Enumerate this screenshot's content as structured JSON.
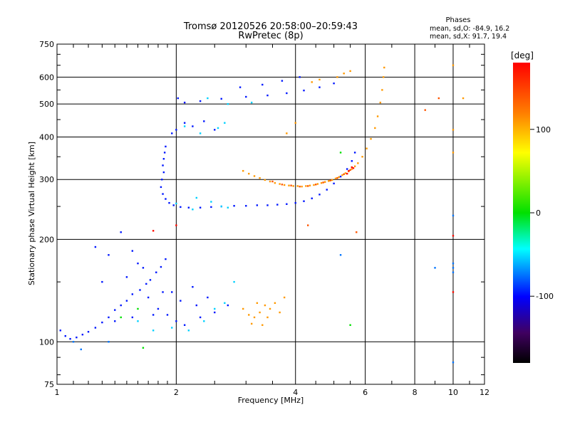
{
  "chart_data": {
    "type": "scatter",
    "title": "Tromsø 20120526 20:58:00–20:59:43",
    "subtitle": "RwPretec (8p)",
    "xlabel": "Frequency [MHz]",
    "ylabel": "Stationary phase Virtual Height [km]",
    "x_scale": "log",
    "y_scale": "log",
    "xlim": [
      1,
      12
    ],
    "ylim": [
      75,
      750
    ],
    "x_ticks": [
      1,
      2,
      4,
      6,
      8,
      10,
      12
    ],
    "y_ticks": [
      75,
      100,
      200,
      300,
      400,
      500,
      600,
      750
    ],
    "grid": true,
    "phases": {
      "heading": "Phases",
      "line1": "mean, sd,O:  -84.9, 16.2",
      "line2": "mean, sd,X:  91.7, 19.4"
    },
    "colorbar": {
      "label": "[deg]",
      "min": -180,
      "max": 180,
      "ticks": [
        100,
        0,
        -100
      ]
    },
    "series": [
      {
        "phase_deg": -95,
        "points": [
          [
            1.02,
            108
          ],
          [
            1.05,
            104
          ],
          [
            1.08,
            102
          ],
          [
            1.12,
            103
          ],
          [
            1.16,
            105
          ],
          [
            1.2,
            107
          ],
          [
            1.25,
            110
          ],
          [
            1.3,
            114
          ],
          [
            1.35,
            118
          ],
          [
            1.4,
            124
          ],
          [
            1.45,
            128
          ],
          [
            1.5,
            132
          ],
          [
            1.55,
            138
          ],
          [
            1.62,
            142
          ],
          [
            1.68,
            148
          ],
          [
            1.72,
            152
          ],
          [
            1.78,
            160
          ],
          [
            1.83,
            166
          ],
          [
            1.88,
            175
          ],
          [
            1.85,
            330
          ],
          [
            1.86,
            345
          ],
          [
            1.87,
            360
          ],
          [
            1.88,
            375
          ],
          [
            1.86,
            315
          ],
          [
            1.84,
            300
          ],
          [
            1.83,
            285
          ],
          [
            1.85,
            272
          ],
          [
            1.88,
            263
          ],
          [
            1.92,
            256
          ],
          [
            1.97,
            252
          ],
          [
            2.05,
            249
          ],
          [
            2.15,
            248
          ],
          [
            2.3,
            248
          ],
          [
            2.45,
            249
          ],
          [
            2.6,
            250
          ],
          [
            2.8,
            251
          ],
          [
            3.0,
            251
          ],
          [
            3.2,
            252
          ],
          [
            3.4,
            252
          ],
          [
            3.6,
            253
          ],
          [
            3.8,
            254
          ],
          [
            4.0,
            256
          ],
          [
            4.2,
            259
          ],
          [
            4.4,
            264
          ],
          [
            4.6,
            271
          ],
          [
            4.8,
            280
          ],
          [
            5.0,
            292
          ],
          [
            5.2,
            306
          ],
          [
            5.4,
            322
          ],
          [
            5.55,
            340
          ],
          [
            5.65,
            360
          ],
          [
            1.95,
            410
          ],
          [
            2.0,
            420
          ],
          [
            2.1,
            440
          ],
          [
            2.2,
            430
          ],
          [
            2.35,
            445
          ],
          [
            2.5,
            420
          ],
          [
            2.02,
            520
          ],
          [
            2.1,
            505
          ],
          [
            2.3,
            510
          ],
          [
            2.6,
            518
          ],
          [
            3.0,
            525
          ],
          [
            3.4,
            530
          ],
          [
            3.8,
            538
          ],
          [
            4.2,
            548
          ],
          [
            4.6,
            560
          ],
          [
            5.0,
            575
          ],
          [
            2.9,
            560
          ],
          [
            3.3,
            570
          ],
          [
            3.7,
            585
          ],
          [
            4.1,
            600
          ],
          [
            1.45,
            210
          ],
          [
            1.55,
            185
          ],
          [
            1.6,
            170
          ],
          [
            1.65,
            165
          ],
          [
            1.35,
            180
          ],
          [
            1.25,
            190
          ],
          [
            1.3,
            150
          ],
          [
            1.5,
            155
          ],
          [
            1.7,
            135
          ],
          [
            1.8,
            125
          ],
          [
            1.9,
            120
          ],
          [
            2.0,
            115
          ],
          [
            2.1,
            112
          ],
          [
            2.3,
            118
          ],
          [
            2.5,
            122
          ],
          [
            2.7,
            128
          ],
          [
            2.4,
            135
          ],
          [
            2.2,
            145
          ],
          [
            1.95,
            140
          ],
          [
            1.75,
            120
          ],
          [
            1.55,
            118
          ],
          [
            1.4,
            115
          ],
          [
            1.85,
            140
          ],
          [
            2.05,
            132
          ],
          [
            2.25,
            128
          ]
        ]
      },
      {
        "phase_deg": -55,
        "points": [
          [
            2.6,
            250
          ],
          [
            2.7,
            248
          ],
          [
            2.2,
            245
          ],
          [
            2.0,
            255
          ],
          [
            2.45,
            258
          ],
          [
            2.25,
            265
          ],
          [
            2.1,
            430
          ],
          [
            2.3,
            410
          ],
          [
            2.55,
            425
          ],
          [
            2.65,
            440
          ],
          [
            2.8,
            150
          ],
          [
            2.65,
            130
          ],
          [
            2.5,
            125
          ],
          [
            2.35,
            115
          ],
          [
            2.15,
            108
          ],
          [
            1.95,
            110
          ],
          [
            1.75,
            108
          ],
          [
            1.6,
            115
          ],
          [
            2.4,
            520
          ],
          [
            2.7,
            500
          ],
          [
            3.1,
            505
          ]
        ]
      },
      {
        "phase_deg": 110,
        "points": [
          [
            2.95,
            318
          ],
          [
            3.05,
            312
          ],
          [
            3.15,
            307
          ],
          [
            3.25,
            303
          ],
          [
            3.35,
            299
          ],
          [
            3.45,
            296
          ],
          [
            3.55,
            293
          ],
          [
            3.65,
            291
          ],
          [
            3.75,
            289
          ],
          [
            3.85,
            288
          ],
          [
            3.95,
            287
          ],
          [
            4.05,
            287
          ],
          [
            4.15,
            286
          ],
          [
            4.25,
            287
          ],
          [
            4.35,
            288
          ],
          [
            4.45,
            289
          ],
          [
            4.55,
            291
          ],
          [
            4.65,
            293
          ],
          [
            4.75,
            295
          ],
          [
            4.85,
            297
          ],
          [
            4.95,
            299
          ],
          [
            5.05,
            302
          ],
          [
            5.15,
            305
          ],
          [
            5.25,
            309
          ],
          [
            5.35,
            313
          ],
          [
            5.45,
            317
          ],
          [
            5.55,
            322
          ],
          [
            5.65,
            328
          ],
          [
            5.75,
            335
          ],
          [
            5.9,
            350
          ],
          [
            6.05,
            370
          ],
          [
            6.2,
            395
          ],
          [
            6.35,
            425
          ],
          [
            6.45,
            460
          ],
          [
            6.55,
            505
          ],
          [
            6.62,
            550
          ],
          [
            6.67,
            600
          ],
          [
            6.7,
            640
          ],
          [
            5.1,
            600
          ],
          [
            5.3,
            615
          ],
          [
            5.5,
            625
          ],
          [
            4.6,
            590
          ],
          [
            4.4,
            580
          ],
          [
            4.0,
            440
          ],
          [
            3.8,
            410
          ],
          [
            2.95,
            125
          ],
          [
            3.05,
            120
          ],
          [
            3.15,
            118
          ],
          [
            3.25,
            122
          ],
          [
            3.35,
            128
          ],
          [
            3.45,
            125
          ],
          [
            3.55,
            130
          ],
          [
            3.65,
            122
          ],
          [
            3.75,
            135
          ],
          [
            3.1,
            113
          ],
          [
            3.3,
            112
          ],
          [
            3.2,
            130
          ],
          [
            3.4,
            118
          ],
          [
            10.0,
            650
          ],
          [
            10.0,
            420
          ],
          [
            10.0,
            360
          ],
          [
            10.6,
            520
          ]
        ]
      },
      {
        "phase_deg": 140,
        "points": [
          [
            3.5,
            296
          ],
          [
            3.7,
            290
          ],
          [
            3.9,
            288
          ],
          [
            4.1,
            286
          ],
          [
            4.3,
            287
          ],
          [
            4.5,
            290
          ],
          [
            4.7,
            294
          ],
          [
            4.9,
            298
          ],
          [
            5.1,
            303
          ],
          [
            5.3,
            311
          ],
          [
            5.5,
            320
          ],
          [
            8.5,
            480
          ],
          [
            9.2,
            520
          ],
          [
            4.3,
            220
          ],
          [
            5.7,
            210
          ]
        ]
      },
      {
        "phase_deg": 175,
        "points": [
          [
            5.45,
            318
          ],
          [
            5.55,
            326
          ],
          [
            5.4,
            312
          ],
          [
            5.6,
            324
          ],
          [
            1.75,
            212
          ],
          [
            2.0,
            220
          ],
          [
            10.0,
            205
          ],
          [
            10.0,
            140
          ]
        ]
      },
      {
        "phase_deg": 0,
        "points": [
          [
            1.45,
            118
          ],
          [
            1.6,
            125
          ],
          [
            5.2,
            360
          ],
          [
            5.5,
            112
          ],
          [
            1.65,
            96
          ]
        ]
      },
      {
        "phase_deg": -75,
        "points": [
          [
            10.0,
            235
          ],
          [
            10.0,
            170
          ],
          [
            10.0,
            165
          ],
          [
            10.0,
            160
          ],
          [
            10.0,
            87
          ],
          [
            9.0,
            165
          ],
          [
            5.2,
            180
          ],
          [
            1.15,
            95
          ],
          [
            1.1,
            100
          ],
          [
            1.35,
            100
          ]
        ]
      }
    ]
  }
}
